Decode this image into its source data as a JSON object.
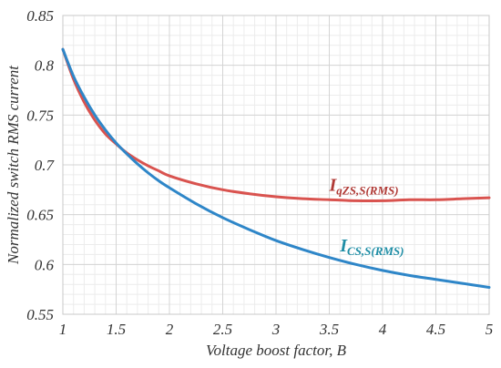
{
  "chart_data": {
    "type": "line",
    "title": "",
    "xlabel": "Voltage boost factor, B",
    "ylabel": "Normalized switch RMS current",
    "xlim": [
      1,
      5
    ],
    "ylim": [
      0.55,
      0.85
    ],
    "xticks": [
      1,
      1.5,
      2,
      2.5,
      3,
      3.5,
      4,
      4.5,
      5
    ],
    "yticks": [
      0.55,
      0.6,
      0.65,
      0.7,
      0.75,
      0.8,
      0.85
    ],
    "xtick_labels": [
      "1",
      "1.5",
      "2",
      "2.5",
      "3",
      "3.5",
      "4",
      "4.5",
      "5"
    ],
    "ytick_labels": [
      "0.55",
      "0.6",
      "0.65",
      "0.7",
      "0.75",
      "0.8",
      "0.85"
    ],
    "grid": true,
    "minor_grid": true,
    "legend": "none",
    "series": [
      {
        "name": "IqZS,S(RMS)",
        "label_main": "I",
        "label_sub": "qZS,S(RMS)",
        "color": "#d9534f",
        "x": [
          1.0,
          1.1,
          1.2,
          1.3,
          1.4,
          1.5,
          1.6,
          1.7,
          1.8,
          1.9,
          2.0,
          2.25,
          2.5,
          2.75,
          3.0,
          3.25,
          3.5,
          3.75,
          4.0,
          4.25,
          4.5,
          4.75,
          5.0
        ],
        "values": [
          0.816,
          0.786,
          0.763,
          0.745,
          0.731,
          0.721,
          0.712,
          0.705,
          0.699,
          0.694,
          0.689,
          0.681,
          0.675,
          0.671,
          0.668,
          0.666,
          0.665,
          0.664,
          0.664,
          0.665,
          0.665,
          0.666,
          0.667
        ]
      },
      {
        "name": "ICS,S(RMS)",
        "label_main": "I",
        "label_sub": "CS,S(RMS)",
        "color": "#2e86c8",
        "x": [
          1.0,
          1.1,
          1.2,
          1.3,
          1.4,
          1.5,
          1.6,
          1.7,
          1.8,
          1.9,
          2.0,
          2.25,
          2.5,
          2.75,
          3.0,
          3.25,
          3.5,
          3.75,
          4.0,
          4.25,
          4.5,
          4.75,
          5.0
        ],
        "values": [
          0.816,
          0.789,
          0.768,
          0.75,
          0.735,
          0.722,
          0.711,
          0.701,
          0.692,
          0.684,
          0.677,
          0.661,
          0.647,
          0.635,
          0.624,
          0.615,
          0.607,
          0.6,
          0.594,
          0.589,
          0.585,
          0.581,
          0.577
        ]
      }
    ]
  }
}
